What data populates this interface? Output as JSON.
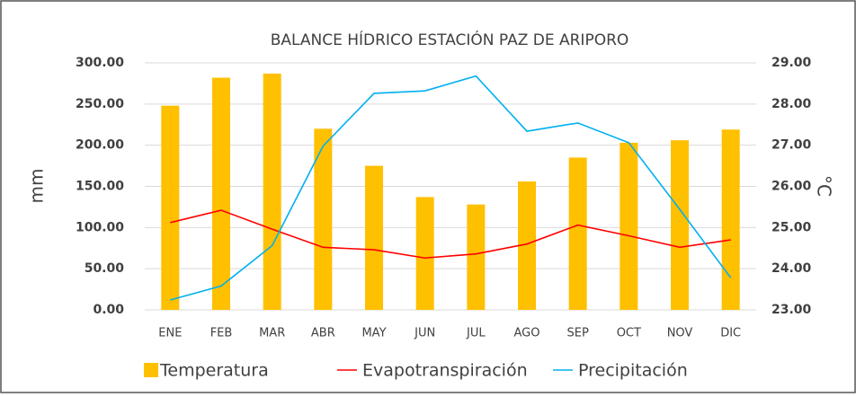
{
  "chart_data": {
    "type": "bar",
    "title": "BALANCE HÍDRICO ESTACIÓN PAZ DE ARIPORO",
    "y_label": "mm",
    "y2_label": "°C",
    "categories": [
      "ENE",
      "FEB",
      "MAR",
      "ABR",
      "MAY",
      "JUN",
      "JUL",
      "AGO",
      "SEP",
      "OCT",
      "NOV",
      "DIC"
    ],
    "series": [
      {
        "name": "Temperatura",
        "type": "bar",
        "axis": "y2",
        "color": "#ffc000",
        "values": [
          27.96,
          28.64,
          28.74,
          27.4,
          26.5,
          25.74,
          25.56,
          26.12,
          26.7,
          27.06,
          27.12,
          27.38
        ]
      },
      {
        "name": "Evapotranspiración",
        "type": "line",
        "color": "#ff0000",
        "values": [
          106,
          121,
          98,
          76,
          73,
          63,
          68,
          80,
          103,
          90,
          76,
          85
        ]
      },
      {
        "name": "Precipitación",
        "type": "line",
        "color": "#00b0f0",
        "values": [
          12,
          29,
          78,
          199,
          263,
          266,
          284,
          217,
          227,
          203,
          122,
          39
        ]
      }
    ],
    "ylim": [
      0,
      300
    ],
    "yticks": [
      {
        "value": 0,
        "label": "0.00"
      },
      {
        "value": 50,
        "label": "50.00"
      },
      {
        "value": 100,
        "label": "100.00"
      },
      {
        "value": 150,
        "label": "150.00"
      },
      {
        "value": 200,
        "label": "200.00"
      },
      {
        "value": 250,
        "label": "250.00"
      },
      {
        "value": 300,
        "label": "300.00"
      }
    ],
    "y2lim": [
      23,
      29
    ],
    "y2ticks": [
      {
        "value": 23,
        "label": "23.00"
      },
      {
        "value": 24,
        "label": "24.00"
      },
      {
        "value": 25,
        "label": "25.00"
      },
      {
        "value": 26,
        "label": "26.00"
      },
      {
        "value": 27,
        "label": "27.00"
      },
      {
        "value": 28,
        "label": "28.00"
      },
      {
        "value": 29,
        "label": "29.00"
      }
    ],
    "grid": true,
    "legend": "bottom"
  }
}
